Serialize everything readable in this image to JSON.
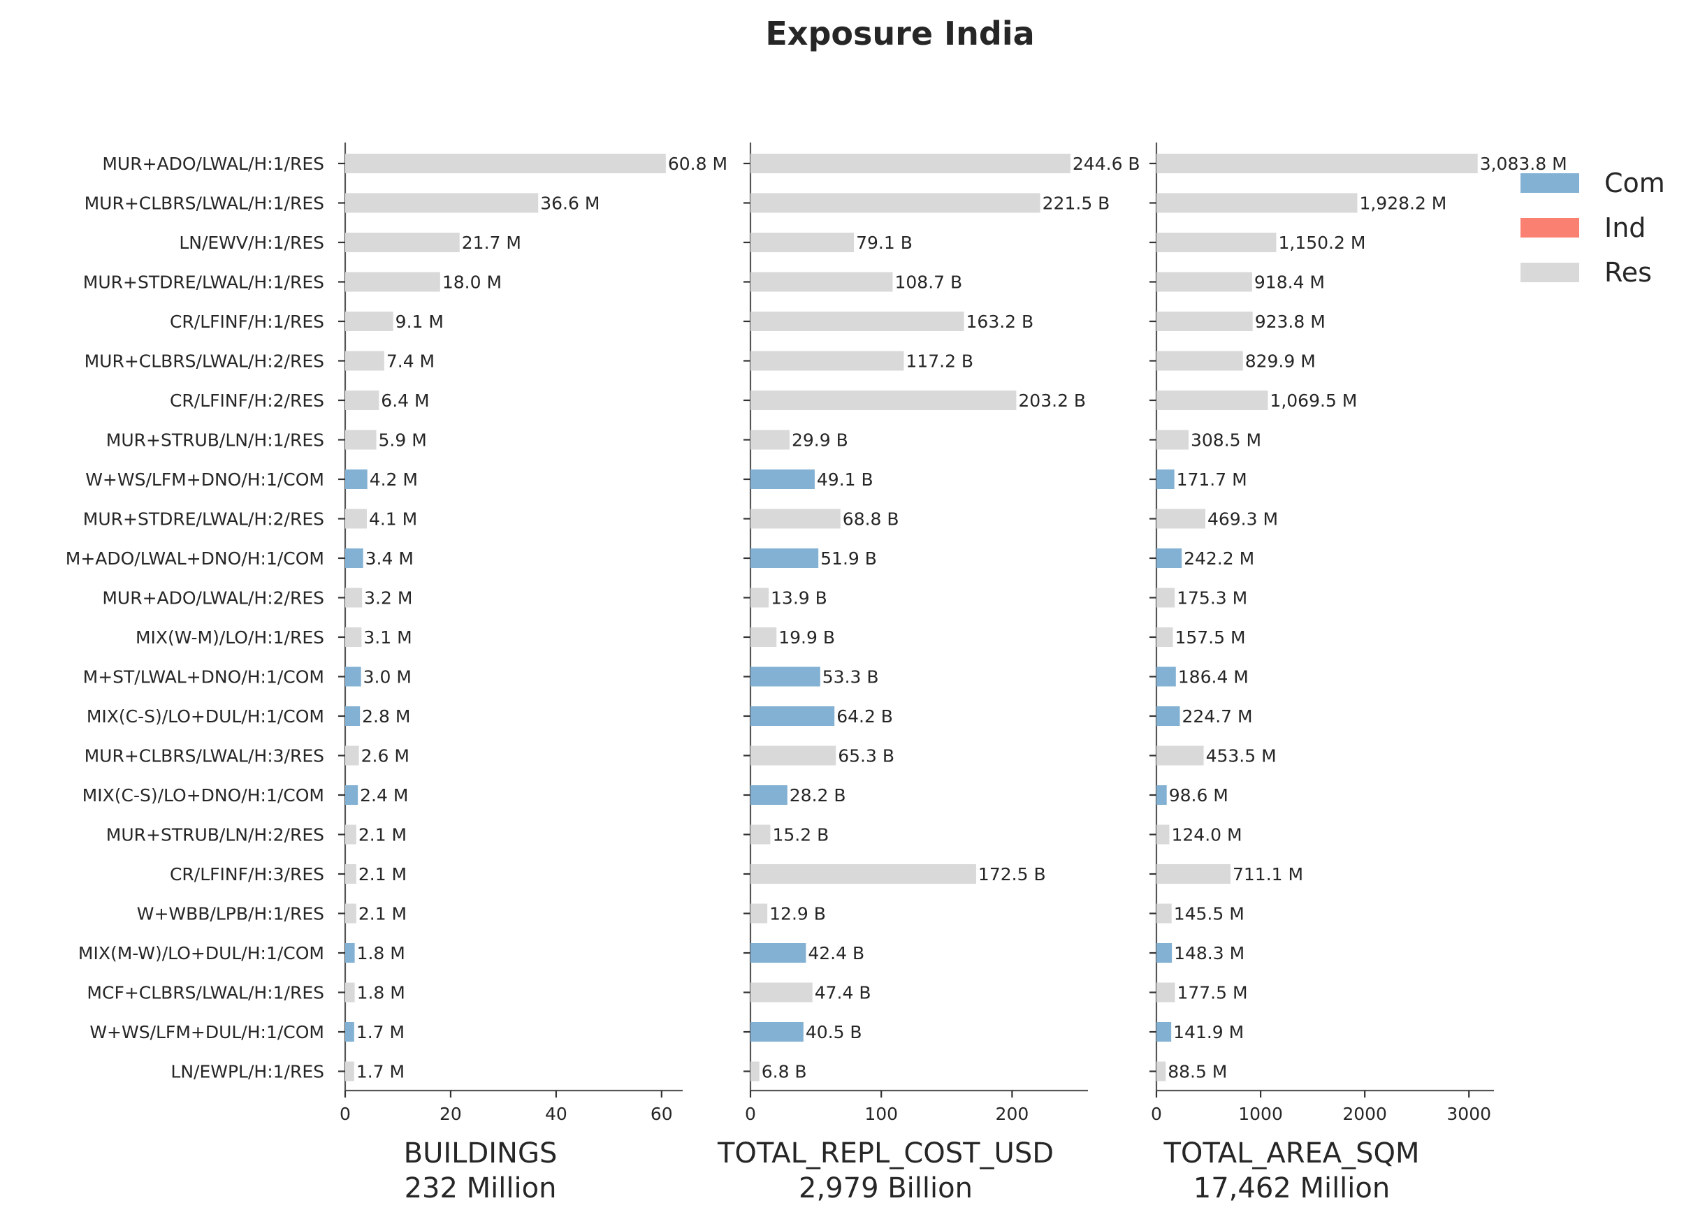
{
  "chart_data": {
    "type": "bar",
    "orientation": "horizontal",
    "title": "Exposure India",
    "categories": [
      "MUR+ADO/LWAL/H:1/RES",
      "MUR+CLBRS/LWAL/H:1/RES",
      "LN/EWV/H:1/RES",
      "MUR+STDRE/LWAL/H:1/RES",
      "CR/LFINF/H:1/RES",
      "MUR+CLBRS/LWAL/H:2/RES",
      "CR/LFINF/H:2/RES",
      "MUR+STRUB/LN/H:1/RES",
      "W+WS/LFM+DNO/H:1/COM",
      "MUR+STDRE/LWAL/H:2/RES",
      "M+ADO/LWAL+DNO/H:1/COM",
      "MUR+ADO/LWAL/H:2/RES",
      "MIX(W-M)/LO/H:1/RES",
      "M+ST/LWAL+DNO/H:1/COM",
      "MIX(C-S)/LO+DUL/H:1/COM",
      "MUR+CLBRS/LWAL/H:3/RES",
      "MIX(C-S)/LO+DNO/H:1/COM",
      "MUR+STRUB/LN/H:2/RES",
      "CR/LFINF/H:3/RES",
      "W+WBB/LPB/H:1/RES",
      "MIX(M-W)/LO+DUL/H:1/COM",
      "MCF+CLBRS/LWAL/H:1/RES",
      "W+WS/LFM+DUL/H:1/COM",
      "LN/EWPL/H:1/RES"
    ],
    "occupancy": [
      "Res",
      "Res",
      "Res",
      "Res",
      "Res",
      "Res",
      "Res",
      "Res",
      "Com",
      "Res",
      "Com",
      "Res",
      "Res",
      "Com",
      "Com",
      "Res",
      "Com",
      "Res",
      "Res",
      "Res",
      "Com",
      "Res",
      "Com",
      "Res"
    ],
    "legend": {
      "placement": "top-right",
      "entries": [
        {
          "name": "Com",
          "color": "#82b1d3"
        },
        {
          "name": "Ind",
          "color": "#fa8072"
        },
        {
          "name": "Res",
          "color": "#d9d9d9"
        }
      ]
    },
    "panels": [
      {
        "xlabel": "BUILDINGS",
        "total_label": "232 Million",
        "xlim": [
          0,
          64
        ],
        "ticks": [
          0,
          20,
          40,
          60
        ],
        "tick_labels": [
          "0",
          "20",
          "40",
          "60"
        ],
        "values": [
          60.8,
          36.6,
          21.7,
          18.0,
          9.1,
          7.4,
          6.4,
          5.9,
          4.2,
          4.1,
          3.4,
          3.2,
          3.1,
          3.0,
          2.8,
          2.6,
          2.4,
          2.1,
          2.1,
          2.1,
          1.8,
          1.8,
          1.7,
          1.7
        ],
        "labels": [
          "60.8 M",
          "36.6 M",
          "21.7 M",
          "18.0 M",
          "9.1 M",
          "7.4 M",
          "6.4 M",
          "5.9 M",
          "4.2 M",
          "4.1 M",
          "3.4 M",
          "3.2 M",
          "3.1 M",
          "3.0 M",
          "2.8 M",
          "2.6 M",
          "2.4 M",
          "2.1 M",
          "2.1 M",
          "2.1 M",
          "1.8 M",
          "1.8 M",
          "1.7 M",
          "1.7 M"
        ]
      },
      {
        "xlabel": "TOTAL_REPL_COST_USD",
        "total_label": "2,979 Billion",
        "xlim": [
          0,
          258
        ],
        "ticks": [
          0,
          100,
          200
        ],
        "tick_labels": [
          "0",
          "100",
          "200"
        ],
        "values": [
          244.6,
          221.5,
          79.1,
          108.7,
          163.2,
          117.2,
          203.2,
          29.9,
          49.1,
          68.8,
          51.9,
          13.9,
          19.9,
          53.3,
          64.2,
          65.3,
          28.2,
          15.2,
          172.5,
          12.9,
          42.4,
          47.4,
          40.5,
          6.8
        ],
        "labels": [
          "244.6 B",
          "221.5 B",
          "79.1 B",
          "108.7 B",
          "163.2 B",
          "117.2 B",
          "203.2 B",
          "29.9 B",
          "49.1 B",
          "68.8 B",
          "51.9 B",
          "13.9 B",
          "19.9 B",
          "53.3 B",
          "64.2 B",
          "65.3 B",
          "28.2 B",
          "15.2 B",
          "172.5 B",
          "12.9 B",
          "42.4 B",
          "47.4 B",
          "40.5 B",
          "6.8 B"
        ]
      },
      {
        "xlabel": "TOTAL_AREA_SQM",
        "total_label": "17,462 Million",
        "xlim": [
          0,
          3240
        ],
        "ticks": [
          0,
          1000,
          2000,
          3000
        ],
        "tick_labels": [
          "0",
          "1000",
          "2000",
          "3000"
        ],
        "values": [
          3083.8,
          1928.2,
          1150.2,
          918.4,
          923.8,
          829.9,
          1069.5,
          308.5,
          171.7,
          469.3,
          242.2,
          175.3,
          157.5,
          186.4,
          224.7,
          453.5,
          98.6,
          124.0,
          711.1,
          145.5,
          148.3,
          177.5,
          141.9,
          88.5
        ],
        "labels": [
          "3,083.8 M",
          "1,928.2 M",
          "1,150.2 M",
          "918.4 M",
          "923.8 M",
          "829.9 M",
          "1,069.5 M",
          "308.5 M",
          "171.7 M",
          "469.3 M",
          "242.2 M",
          "175.3 M",
          "157.5 M",
          "186.4 M",
          "224.7 M",
          "453.5 M",
          "98.6 M",
          "124.0 M",
          "711.1 M",
          "145.5 M",
          "148.3 M",
          "177.5 M",
          "141.9 M",
          "88.5 M"
        ]
      }
    ]
  }
}
